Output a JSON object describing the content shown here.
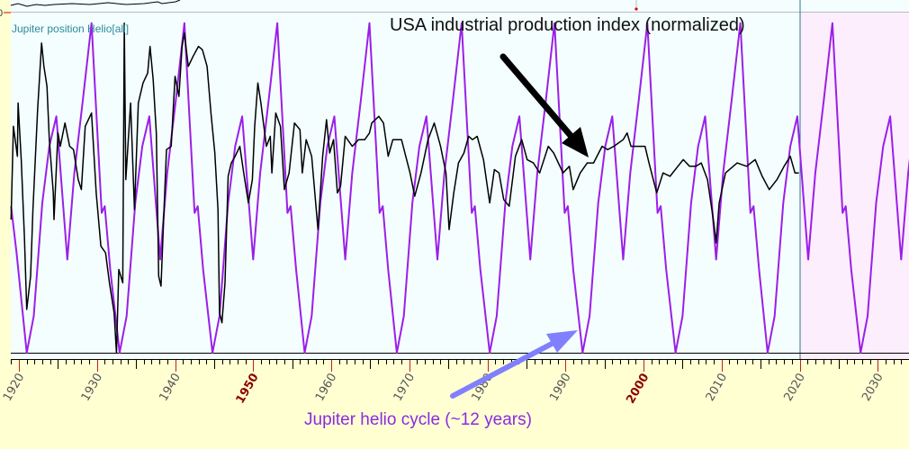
{
  "chart_data": {
    "type": "line",
    "panel_label": "Jupiter position Helio[all]",
    "annotations": {
      "production_label": "USA industrial production index (normalized)",
      "cycle_label": "Jupiter helio cycle (~12 years)"
    },
    "xlim": [
      1919.0,
      2034.1
    ],
    "ylim": [
      0,
      1
    ],
    "x_ticks": [
      "1920",
      "1930",
      "1940",
      "1950",
      "1960",
      "1970",
      "1980",
      "1990",
      "2000",
      "2010",
      "2020",
      "2030"
    ],
    "highlighted_ticks": [
      "1950",
      "2000"
    ],
    "future_region_start": 2020,
    "colors": {
      "jupiter": "#9b1fe8",
      "production": "#000000",
      "plot_bg": "#f4fefe",
      "future_bg": "#fdeefd",
      "frame_bg": "#ffffd2",
      "cycle_arrow": "#8080ff",
      "panel_label": "#2a8a9a"
    },
    "series": [
      {
        "key": "jupiter",
        "x": [
          1919.0,
          1919.7,
          1921.0,
          1921.9,
          1923.0,
          1923.9,
          1924.8,
          1926.2,
          1927.1,
          1928.2,
          1929.3,
          1930.6,
          1931.0,
          1931.7,
          1932.9,
          1933.8,
          1934.9,
          1935.8,
          1936.7,
          1938.1,
          1939.0,
          1940.1,
          1941.2,
          1942.5,
          1942.9,
          1943.6,
          1944.8,
          1945.7,
          1946.8,
          1947.7,
          1948.6,
          1950.0,
          1950.9,
          1952.0,
          1953.1,
          1954.4,
          1954.8,
          1955.5,
          1956.6,
          1957.5,
          1958.6,
          1959.5,
          1960.4,
          1961.8,
          1962.7,
          1963.8,
          1964.9,
          1966.2,
          1966.6,
          1967.3,
          1968.4,
          1969.3,
          1970.4,
          1971.3,
          1972.2,
          1973.6,
          1974.5,
          1975.6,
          1976.7,
          1978.0,
          1978.4,
          1979.1,
          1980.3,
          1981.2,
          1982.3,
          1983.2,
          1984.1,
          1985.5,
          1986.4,
          1987.5,
          1988.6,
          1989.9,
          1990.3,
          1991.0,
          1992.2,
          1993.1,
          1994.2,
          1995.1,
          1996.0,
          1997.4,
          1998.3,
          1999.4,
          2000.5,
          2001.8,
          2002.2,
          2002.9,
          2004.1,
          2005.0,
          2006.1,
          2007.0,
          2007.9,
          2009.3,
          2010.2,
          2011.3,
          2012.4,
          2013.7,
          2014.1,
          2014.8,
          2015.9,
          2016.8,
          2017.9,
          2018.8,
          2019.7,
          2021.1,
          2022.0,
          2023.1,
          2024.2,
          2025.5,
          2025.9,
          2026.6,
          2027.8,
          2028.7,
          2029.8,
          2030.7,
          2031.6,
          2033.0,
          2033.9,
          2035.0
        ],
        "y": [
          0.44,
          0.3,
          0,
          0.11,
          0.45,
          0.62,
          0.71,
          0.28,
          0.54,
          0.76,
          0.99,
          0.42,
          0.44,
          0.25,
          0,
          0.11,
          0.45,
          0.62,
          0.71,
          0.28,
          0.54,
          0.76,
          0.99,
          0.42,
          0.44,
          0.25,
          0,
          0.11,
          0.45,
          0.62,
          0.71,
          0.28,
          0.54,
          0.76,
          0.99,
          0.42,
          0.44,
          0.25,
          0,
          0.11,
          0.45,
          0.62,
          0.71,
          0.28,
          0.54,
          0.76,
          0.99,
          0.42,
          0.44,
          0.25,
          0,
          0.11,
          0.45,
          0.62,
          0.71,
          0.28,
          0.54,
          0.76,
          0.99,
          0.42,
          0.44,
          0.25,
          0,
          0.11,
          0.45,
          0.62,
          0.71,
          0.28,
          0.54,
          0.76,
          0.99,
          0.42,
          0.44,
          0.25,
          0,
          0.11,
          0.45,
          0.62,
          0.71,
          0.28,
          0.54,
          0.76,
          0.99,
          0.42,
          0.44,
          0.25,
          0,
          0.11,
          0.45,
          0.62,
          0.71,
          0.28,
          0.54,
          0.76,
          0.99,
          0.42,
          0.44,
          0.25,
          0,
          0.11,
          0.45,
          0.62,
          0.71,
          0.28,
          0.54,
          0.76,
          0.99,
          0.42,
          0.44,
          0.25,
          0,
          0.11,
          0.45,
          0.62,
          0.71,
          0.28,
          0.54,
          0.76
        ]
      },
      {
        "key": "production",
        "x": [
          1919.0,
          1919.3,
          1919.8,
          1919.9,
          1920.3,
          1920.7,
          1921.0,
          1921.5,
          1921.8,
          1922.4,
          1922.9,
          1923.2,
          1923.6,
          1923.9,
          1924.4,
          1924.5,
          1925.0,
          1925.3,
          1925.9,
          1926.5,
          1927.0,
          1927.6,
          1928.0,
          1928.5,
          1929.3,
          1929.9,
          1930.5,
          1931.1,
          1931.6,
          1932.2,
          1932.5,
          1932.8,
          1933.3,
          1933.5,
          1933.7,
          1934.3,
          1934.8,
          1935.3,
          1935.9,
          1936.5,
          1936.8,
          1937.2,
          1937.6,
          1937.9,
          1938.2,
          1938.6,
          1938.9,
          1939.5,
          1940.0,
          1940.5,
          1940.9,
          1941.2,
          1941.7,
          1942.3,
          1943.0,
          1943.5,
          1944.1,
          1944.6,
          1945.1,
          1945.5,
          1945.7,
          1946.0,
          1946.4,
          1946.8,
          1947.2,
          1947.7,
          1948.3,
          1948.8,
          1949.4,
          1949.9,
          1950.2,
          1950.6,
          1951.0,
          1951.7,
          1952.2,
          1952.4,
          1952.9,
          1953.5,
          1954.0,
          1954.6,
          1955.3,
          1956.0,
          1956.3,
          1956.8,
          1957.5,
          1958.3,
          1958.9,
          1959.4,
          1959.8,
          1960.3,
          1960.8,
          1961.2,
          1961.8,
          1962.7,
          1963.5,
          1964.3,
          1964.9,
          1965.2,
          1966.1,
          1966.7,
          1967.3,
          1967.9,
          1969.0,
          1970.1,
          1970.7,
          1971.5,
          1972.4,
          1973.2,
          1974.0,
          1974.7,
          1975.1,
          1975.7,
          1976.3,
          1977.0,
          1977.6,
          1978.1,
          1978.7,
          1979.5,
          1980.3,
          1980.9,
          1981.5,
          1982.1,
          1982.8,
          1983.6,
          1984.4,
          1985.1,
          1985.9,
          1986.7,
          1987.8,
          1988.5,
          1989.7,
          1990.5,
          1991.0,
          1991.9,
          1992.8,
          1993.6,
          1994.7,
          1995.4,
          1996.2,
          1997.4,
          1997.9,
          1998.4,
          1999.2,
          2000.2,
          2000.7,
          2001.7,
          2002.5,
          2003.4,
          2004.4,
          2005.1,
          2005.9,
          2006.7,
          2007.4,
          2008.2,
          2009.0,
          2009.3,
          2009.7,
          2010.5,
          2012.0,
          2013.2,
          2014.3,
          2015.2,
          2016.1,
          2017.1,
          2018.0,
          2018.8,
          2019.4,
          2019.9
        ],
        "y": [
          0.4,
          0.68,
          0.59,
          0.75,
          0.58,
          0.35,
          0.13,
          0.23,
          0.43,
          0.73,
          0.93,
          0.86,
          0.8,
          0.64,
          0.48,
          0.4,
          0.66,
          0.62,
          0.69,
          0.62,
          0.61,
          0.52,
          0.49,
          0.68,
          0.72,
          0.48,
          0.32,
          0.3,
          0.21,
          0.12,
          0.0,
          0.25,
          0.21,
          0.99,
          0.52,
          0.75,
          0.43,
          0.75,
          0.81,
          0.84,
          0.92,
          0.82,
          0.66,
          0.23,
          0.2,
          0.44,
          0.61,
          0.62,
          0.83,
          0.77,
          0.92,
          0.96,
          0.86,
          0.89,
          0.92,
          0.91,
          0.86,
          0.72,
          0.6,
          0.43,
          0.12,
          0.09,
          0.21,
          0.53,
          0.57,
          0.59,
          0.62,
          0.54,
          0.45,
          0.52,
          0.68,
          0.81,
          0.75,
          0.62,
          0.65,
          0.54,
          0.72,
          0.68,
          0.49,
          0.54,
          0.69,
          0.67,
          0.54,
          0.64,
          0.59,
          0.37,
          0.59,
          0.7,
          0.6,
          0.64,
          0.48,
          0.5,
          0.65,
          0.62,
          0.64,
          0.64,
          0.66,
          0.69,
          0.71,
          0.69,
          0.59,
          0.64,
          0.64,
          0.54,
          0.47,
          0.54,
          0.64,
          0.69,
          0.62,
          0.54,
          0.37,
          0.48,
          0.57,
          0.6,
          0.65,
          0.64,
          0.65,
          0.58,
          0.45,
          0.55,
          0.54,
          0.46,
          0.44,
          0.59,
          0.64,
          0.58,
          0.57,
          0.54,
          0.62,
          0.6,
          0.54,
          0.56,
          0.49,
          0.54,
          0.57,
          0.57,
          0.62,
          0.61,
          0.62,
          0.64,
          0.66,
          0.62,
          0.62,
          0.62,
          0.57,
          0.48,
          0.54,
          0.53,
          0.56,
          0.58,
          0.56,
          0.56,
          0.57,
          0.52,
          0.39,
          0.33,
          0.45,
          0.54,
          0.57,
          0.56,
          0.58,
          0.53,
          0.49,
          0.52,
          0.56,
          0.59,
          0.54,
          0.54
        ]
      }
    ]
  },
  "top_panel": {
    "zero_label": "0"
  }
}
